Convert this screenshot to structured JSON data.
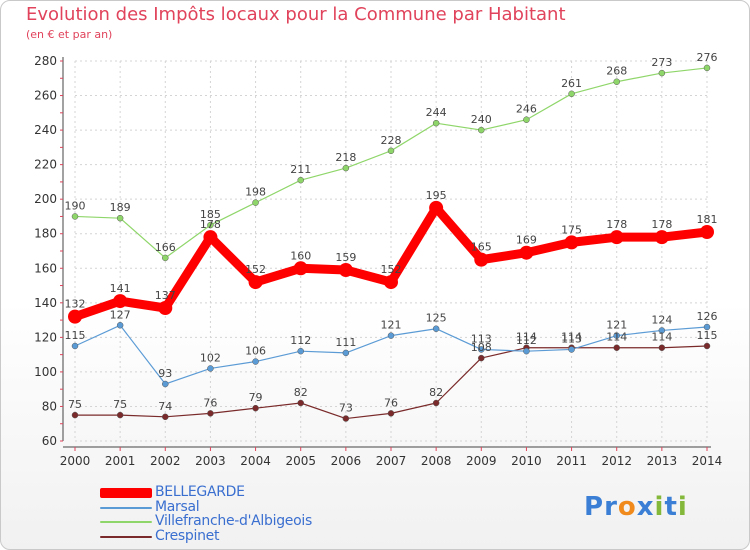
{
  "header": {
    "title": "Evolution des Impôts locaux pour la Commune par Habitant",
    "subtitle": "(en € et par an)"
  },
  "logo": {
    "text": "Proxiti",
    "letters": [
      {
        "ch": "P",
        "color": "#3a7fd5"
      },
      {
        "ch": "r",
        "color": "#3a7fd5"
      },
      {
        "ch": "o",
        "color": "#f08a1c"
      },
      {
        "ch": "x",
        "color": "#3a7fd5"
      },
      {
        "ch": "i",
        "color": "#84b83a"
      },
      {
        "ch": "t",
        "color": "#3a7fd5"
      },
      {
        "ch": "i",
        "color": "#84b83a"
      }
    ]
  },
  "chart_data": {
    "type": "line",
    "x": [
      2000,
      2001,
      2002,
      2003,
      2004,
      2005,
      2006,
      2007,
      2008,
      2009,
      2010,
      2011,
      2012,
      2013,
      2014
    ],
    "ylim": [
      60,
      280
    ],
    "yticks": [
      60,
      80,
      100,
      120,
      140,
      160,
      180,
      200,
      220,
      240,
      260,
      280
    ],
    "grid": true,
    "legend_position": "bottom-left",
    "series": [
      {
        "name": "BELLEGARDE",
        "color": "#ff0000",
        "values": [
          132,
          141,
          137,
          178,
          152,
          160,
          159,
          152,
          195,
          165,
          169,
          175,
          178,
          178,
          181
        ]
      },
      {
        "name": "Marsal",
        "color": "#5b9bd5",
        "values": [
          115,
          127,
          93,
          102,
          106,
          112,
          111,
          121,
          125,
          113,
          112,
          113,
          121,
          124,
          126
        ]
      },
      {
        "name": "Villefranche-d'Albigeois",
        "color": "#8fd66a",
        "values": [
          190,
          189,
          166,
          185,
          198,
          211,
          218,
          228,
          244,
          240,
          246,
          261,
          268,
          273,
          276
        ]
      },
      {
        "name": "Crespinet",
        "color": "#7a2a2a",
        "values": [
          75,
          75,
          74,
          76,
          79,
          82,
          73,
          76,
          82,
          108,
          114,
          114,
          114,
          114,
          115
        ]
      }
    ]
  }
}
